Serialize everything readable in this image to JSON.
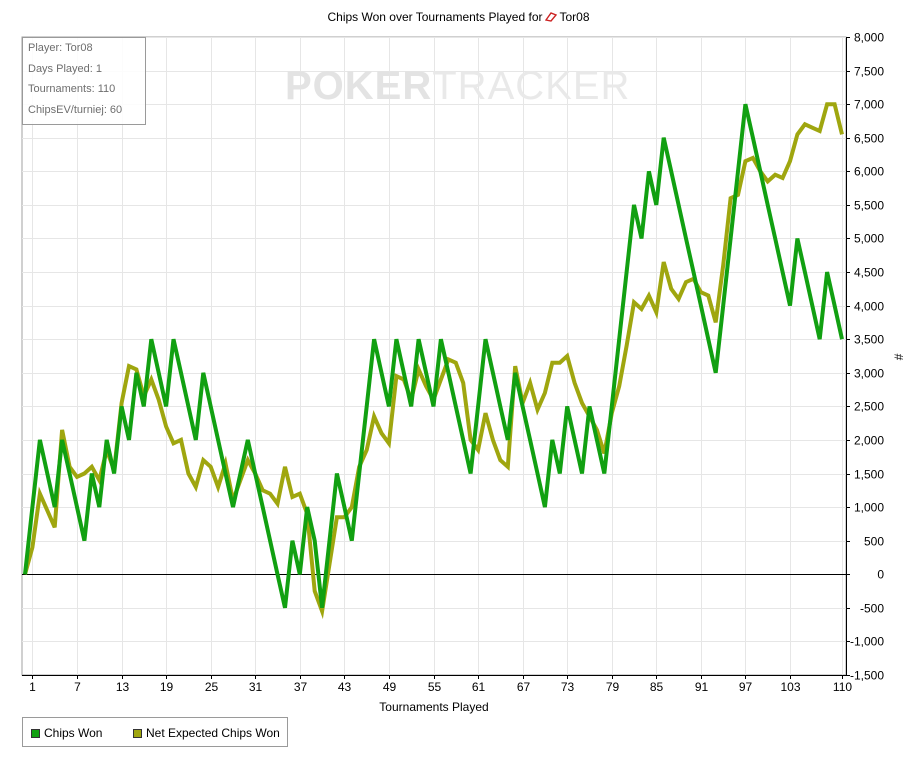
{
  "chart_data": {
    "type": "line",
    "title": "Chips Won over Tournaments Played for",
    "player": "Tor08",
    "xlabel": "Tournaments Played",
    "ylabel": "#",
    "x_ticks": [
      "1",
      "7",
      "13",
      "19",
      "25",
      "31",
      "37",
      "43",
      "49",
      "55",
      "61",
      "67",
      "73",
      "79",
      "85",
      "91",
      "97",
      "103",
      "110"
    ],
    "x_tick_values": [
      1,
      7,
      13,
      19,
      25,
      31,
      37,
      43,
      49,
      55,
      61,
      67,
      73,
      79,
      85,
      91,
      97,
      103,
      110
    ],
    "xlim": [
      0,
      110
    ],
    "ylim": [
      -1500,
      8000
    ],
    "y_ticks": [
      "8,000",
      "7,500",
      "7,000",
      "6,500",
      "6,000",
      "5,500",
      "5,000",
      "4,500",
      "4,000",
      "3,500",
      "3,000",
      "2,500",
      "2,000",
      "1,500",
      "1,000",
      "500",
      "0",
      "-500",
      "-1,000",
      "-1,500"
    ],
    "y_tick_values": [
      8000,
      7500,
      7000,
      6500,
      6000,
      5500,
      5000,
      4500,
      4000,
      3500,
      3000,
      2500,
      2000,
      1500,
      1000,
      500,
      0,
      -500,
      -1000,
      -1500
    ],
    "grid": true,
    "legend_position": "bottom-left",
    "x": [
      0,
      1,
      2,
      3,
      4,
      5,
      6,
      7,
      8,
      9,
      10,
      11,
      12,
      13,
      14,
      15,
      16,
      17,
      18,
      19,
      20,
      21,
      22,
      23,
      24,
      25,
      26,
      27,
      28,
      29,
      30,
      31,
      32,
      33,
      34,
      35,
      36,
      37,
      38,
      39,
      40,
      41,
      42,
      43,
      44,
      45,
      46,
      47,
      48,
      49,
      50,
      51,
      52,
      53,
      54,
      55,
      56,
      57,
      58,
      59,
      60,
      61,
      62,
      63,
      64,
      65,
      66,
      67,
      68,
      69,
      70,
      71,
      72,
      73,
      74,
      75,
      76,
      77,
      78,
      79,
      80,
      81,
      82,
      83,
      84,
      85,
      86,
      87,
      88,
      89,
      90,
      91,
      92,
      93,
      94,
      95,
      96,
      97,
      98,
      99,
      100,
      101,
      102,
      103,
      104,
      105,
      106,
      107,
      108,
      109,
      110
    ],
    "series": [
      {
        "name": "Chips Won",
        "color": "#11a011",
        "values": [
          0,
          1000,
          2000,
          1500,
          1000,
          2000,
          1500,
          1000,
          500,
          1500,
          1000,
          2000,
          1500,
          2500,
          2000,
          3000,
          2500,
          3500,
          3000,
          2500,
          3500,
          3000,
          2500,
          2000,
          3000,
          2500,
          2000,
          1500,
          1000,
          1500,
          2000,
          1500,
          1000,
          500,
          0,
          -500,
          500,
          0,
          1000,
          500,
          -500,
          500,
          1500,
          1000,
          500,
          1500,
          2500,
          3500,
          3000,
          2500,
          3500,
          3000,
          2500,
          3500,
          3000,
          2500,
          3500,
          3000,
          2500,
          2000,
          1500,
          2500,
          3500,
          3000,
          2500,
          2000,
          3000,
          2500,
          2000,
          1500,
          1000,
          2000,
          1500,
          2500,
          2000,
          1500,
          2500,
          2000,
          1500,
          2500,
          3500,
          4500,
          5500,
          5000,
          6000,
          5500,
          6500,
          6000,
          5500,
          5000,
          4500,
          4000,
          3500,
          3000,
          4000,
          5000,
          6000,
          7000,
          6500,
          6000,
          5500,
          5000,
          4500,
          4000,
          5000,
          4500,
          4000,
          3500,
          4500,
          4000,
          3500
        ]
      },
      {
        "name": "Net Expected Chips Won",
        "color": "#9fa60f",
        "values": [
          0,
          400,
          1200,
          950,
          700,
          2150,
          1600,
          1450,
          1500,
          1600,
          1400,
          1850,
          1550,
          2550,
          3100,
          3050,
          2650,
          2900,
          2600,
          2200,
          1950,
          2000,
          1500,
          1300,
          1700,
          1600,
          1300,
          1650,
          1100,
          1400,
          1700,
          1500,
          1250,
          1200,
          1050,
          1600,
          1150,
          1200,
          900,
          -250,
          -550,
          150,
          850,
          850,
          1000,
          1600,
          1850,
          2350,
          2100,
          1950,
          2950,
          2900,
          2600,
          3050,
          2800,
          2600,
          2900,
          3200,
          3150,
          2850,
          2000,
          1850,
          2400,
          2000,
          1700,
          1600,
          3100,
          2550,
          2850,
          2450,
          2700,
          3150,
          3150,
          3250,
          2850,
          2550,
          2350,
          2150,
          1800,
          2400,
          2800,
          3400,
          4050,
          3950,
          4150,
          3900,
          4650,
          4250,
          4100,
          4350,
          4400,
          4200,
          4150,
          3750,
          4600,
          5600,
          5650,
          6150,
          6200,
          6000,
          5850,
          5950,
          5900,
          6150,
          6550,
          6700,
          6650,
          6600,
          7000,
          7000,
          6550
        ]
      }
    ]
  },
  "info_box": {
    "player": "Player: Tor08",
    "days": "Days Played: 1",
    "tournaments": "Tournaments: 110",
    "chips_ev": "ChipsEV/turniej: 60"
  },
  "watermark": {
    "bold": "POKER",
    "light": "TRACKER"
  },
  "colors": {
    "grid": "#e6e6e6",
    "axis": "#000000",
    "chips_won": "#11a011",
    "net_expected": "#9fa60f"
  }
}
